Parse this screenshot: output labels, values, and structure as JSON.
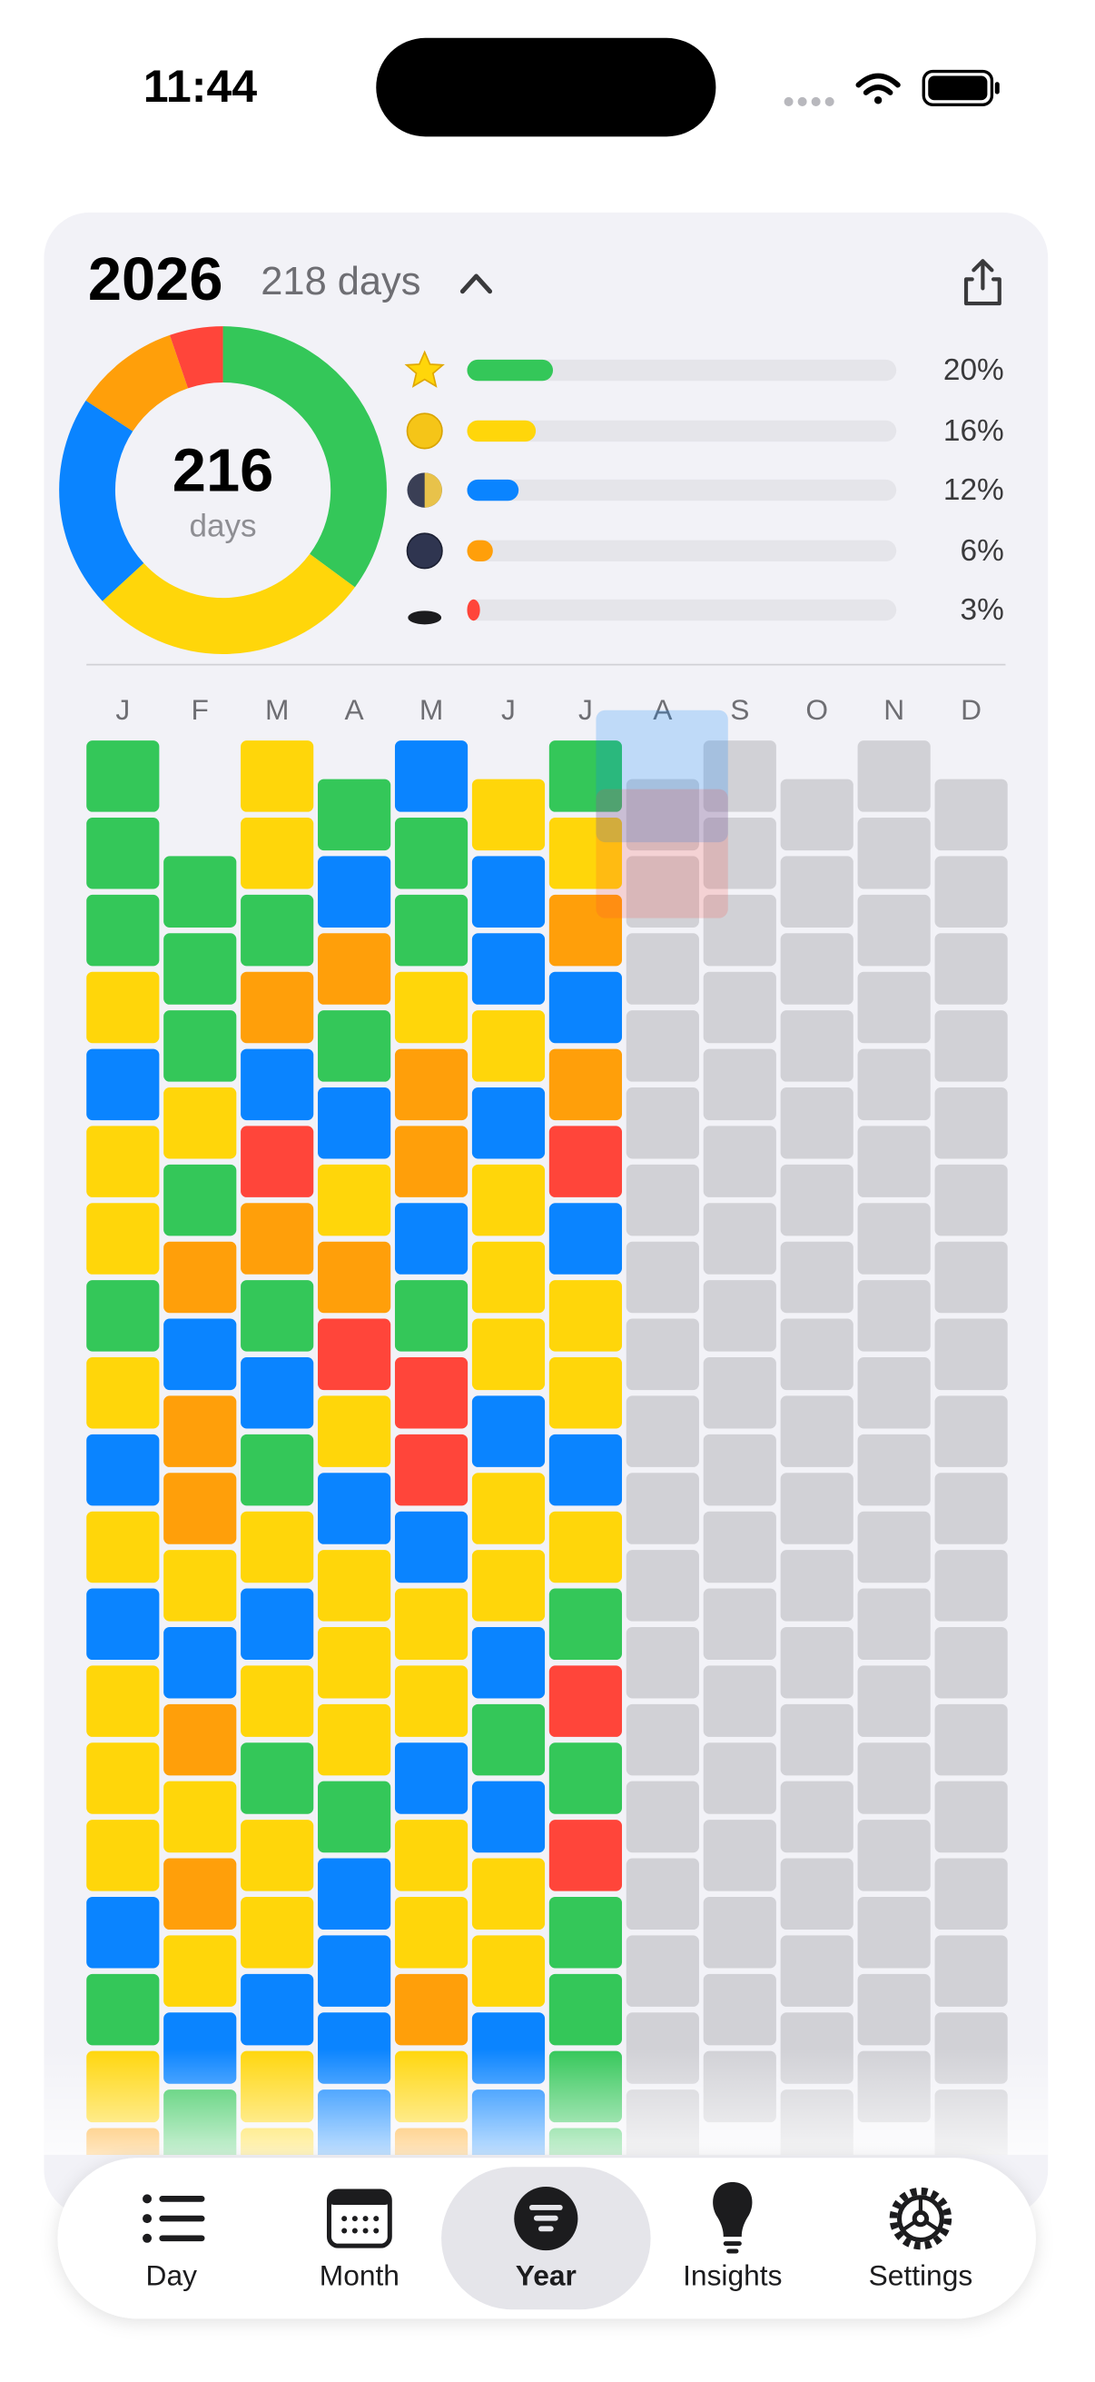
{
  "status_bar": {
    "time": "11:44"
  },
  "header": {
    "year": "2026",
    "days": "218 days"
  },
  "summary": {
    "total": "216",
    "unit": "days",
    "values": [
      20,
      16,
      12,
      6,
      3
    ],
    "value_labels": [
      "20%",
      "16%",
      "12%",
      "6%",
      "3%"
    ],
    "colors": [
      "#34c759",
      "#ffd60a",
      "#0a84ff",
      "#ff9f0a",
      "#ff453a"
    ]
  },
  "calendar": {
    "months": [
      {
        "label": "J",
        "cells": [
          "#34c759",
          "#34c759",
          "#34c759",
          "#ffd60a",
          "#0a84ff",
          "#ffd60a",
          "#ffd60a",
          "#34c759",
          "#ffd60a",
          "#0a84ff",
          "#ffd60a",
          "#0a84ff",
          "#ffd60a",
          "#ffd60a",
          "#ffd60a",
          "#0a84ff",
          "#34c759",
          "#ffd60a",
          "#ff9f0a"
        ]
      },
      {
        "label": "F",
        "cells": [
          null,
          "#34c759",
          "#34c759",
          "#34c759",
          "#ffd60a",
          "#34c759",
          "#ff9f0a",
          "#0a84ff",
          "#ff9f0a",
          "#ff9f0a",
          "#ffd60a",
          "#0a84ff",
          "#ff9f0a",
          "#ffd60a",
          "#ff9f0a",
          "#ffd60a",
          "#0a84ff",
          "#34c759"
        ]
      },
      {
        "label": "M",
        "cells": [
          "#ffd60a",
          "#ffd60a",
          "#34c759",
          "#ff9f0a",
          "#0a84ff",
          "#ff453a",
          "#ff9f0a",
          "#34c759",
          "#0a84ff",
          "#34c759",
          "#ffd60a",
          "#0a84ff",
          "#ffd60a",
          "#34c759",
          "#ffd60a",
          "#ffd60a",
          "#0a84ff",
          "#ffd60a",
          "#ffd60a"
        ]
      },
      {
        "label": "A",
        "cells": [
          "#34c759",
          "#0a84ff",
          "#ff9f0a",
          "#34c759",
          "#0a84ff",
          "#ffd60a",
          "#ff9f0a",
          "#ff453a",
          "#ffd60a",
          "#0a84ff",
          "#ffd60a",
          "#ffd60a",
          "#ffd60a",
          "#34c759",
          "#0a84ff",
          "#0a84ff",
          "#0a84ff",
          "#0a84ff"
        ]
      },
      {
        "label": "M",
        "cells": [
          "#0a84ff",
          "#34c759",
          "#34c759",
          "#ffd60a",
          "#ff9f0a",
          "#ff9f0a",
          "#0a84ff",
          "#34c759",
          "#ff453a",
          "#ff453a",
          "#0a84ff",
          "#ffd60a",
          "#ffd60a",
          "#0a84ff",
          "#ffd60a",
          "#ffd60a",
          "#ff9f0a",
          "#ffd60a",
          "#ff9f0a"
        ]
      },
      {
        "label": "J",
        "cells": [
          "#ffd60a",
          "#0a84ff",
          "#0a84ff",
          "#ffd60a",
          "#0a84ff",
          "#ffd60a",
          "#ffd60a",
          "#ffd60a",
          "#0a84ff",
          "#ffd60a",
          "#ffd60a",
          "#0a84ff",
          "#34c759",
          "#0a84ff",
          "#ffd60a",
          "#ffd60a",
          "#0a84ff",
          "#0a84ff"
        ]
      },
      {
        "label": "J",
        "cells": [
          "#34c759",
          "#ffd60a",
          "#ff9f0a",
          "#0a84ff",
          "#ff9f0a",
          "#ff453a",
          "#0a84ff",
          "#ffd60a",
          "#ffd60a",
          "#0a84ff",
          "#ffd60a",
          "#34c759",
          "#ff453a",
          "#34c759",
          "#ff453a",
          "#34c759",
          "#34c759",
          "#34c759",
          "#34c759"
        ]
      },
      {
        "label": "A",
        "cells": [
          "#d1d1d6",
          "#d1d1d6",
          "#d1d1d6",
          "#d1d1d6",
          "#d1d1d6",
          "#d1d1d6",
          "#d1d1d6",
          "#d1d1d6",
          "#d1d1d6",
          "#d1d1d6",
          "#d1d1d6",
          "#d1d1d6",
          "#d1d1d6",
          "#d1d1d6",
          "#d1d1d6",
          "#d1d1d6",
          "#d1d1d6",
          "#d1d1d6",
          "#d1d1d6"
        ]
      },
      {
        "label": "S",
        "cells": [
          "#d1d1d6",
          "#d1d1d6",
          "#d1d1d6",
          "#d1d1d6",
          "#d1d1d6",
          "#d1d1d6",
          "#d1d1d6",
          "#d1d1d6",
          "#d1d1d6",
          "#d1d1d6",
          "#d1d1d6",
          "#d1d1d6",
          "#d1d1d6",
          "#d1d1d6",
          "#d1d1d6",
          "#d1d1d6",
          "#d1d1d6",
          "#d1d1d6"
        ]
      },
      {
        "label": "O",
        "cells": [
          "#d1d1d6",
          "#d1d1d6",
          "#d1d1d6",
          "#d1d1d6",
          "#d1d1d6",
          "#d1d1d6",
          "#d1d1d6",
          "#d1d1d6",
          "#d1d1d6",
          "#d1d1d6",
          "#d1d1d6",
          "#d1d1d6",
          "#d1d1d6",
          "#d1d1d6",
          "#d1d1d6",
          "#d1d1d6",
          "#d1d1d6",
          "#d1d1d6",
          "#d1d1d6"
        ]
      },
      {
        "label": "N",
        "cells": [
          "#d1d1d6",
          "#d1d1d6",
          "#d1d1d6",
          "#d1d1d6",
          "#d1d1d6",
          "#d1d1d6",
          "#d1d1d6",
          "#d1d1d6",
          "#d1d1d6",
          "#d1d1d6",
          "#d1d1d6",
          "#d1d1d6",
          "#d1d1d6",
          "#d1d1d6",
          "#d1d1d6",
          "#d1d1d6",
          "#d1d1d6",
          "#d1d1d6"
        ]
      },
      {
        "label": "D",
        "cells": [
          "#d1d1d6",
          "#d1d1d6",
          "#d1d1d6",
          "#d1d1d6",
          "#d1d1d6",
          "#d1d1d6",
          "#d1d1d6",
          "#d1d1d6",
          "#d1d1d6",
          "#d1d1d6",
          "#d1d1d6",
          "#d1d1d6",
          "#d1d1d6",
          "#d1d1d6",
          "#d1d1d6",
          "#d1d1d6",
          "#d1d1d6",
          "#d1d1d6",
          "#d1d1d6"
        ]
      }
    ]
  },
  "tab_bar": {
    "tabs": [
      "Day",
      "Month",
      "Year",
      "Insights",
      "Settings"
    ],
    "selected": "Year"
  }
}
